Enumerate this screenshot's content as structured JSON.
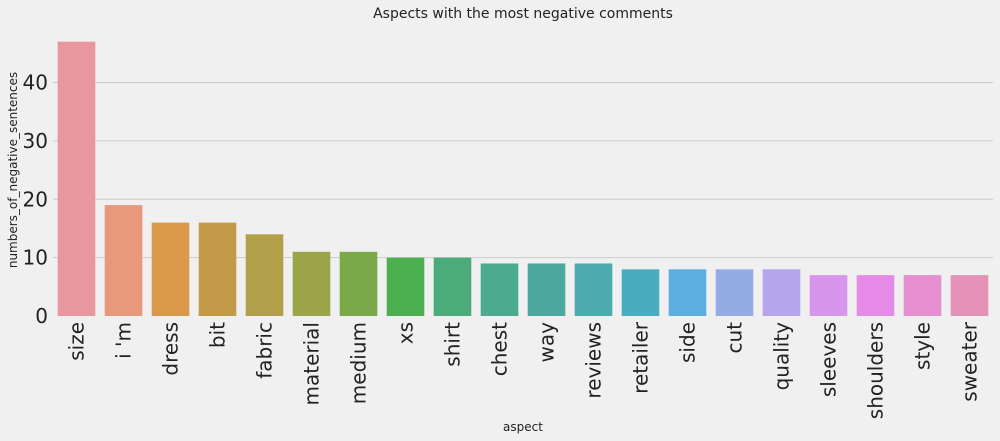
{
  "chart_data": {
    "type": "bar",
    "title": "Aspects with the most negative comments",
    "xlabel": "aspect",
    "ylabel": "numbers_of_negative_sentences",
    "categories": [
      "size",
      "i 'm",
      "dress",
      "bit",
      "fabric",
      "material",
      "medium",
      "xs",
      "shirt",
      "chest",
      "way",
      "reviews",
      "retailer",
      "side",
      "cut",
      "quality",
      "sleeves",
      "shoulders",
      "style",
      "sweater"
    ],
    "values": [
      47,
      19,
      16,
      16,
      14,
      11,
      11,
      10,
      10,
      9,
      9,
      9,
      8,
      8,
      8,
      8,
      7,
      7,
      7,
      7
    ],
    "colors": [
      "#e9969e",
      "#e8997c",
      "#d9984a",
      "#c49a49",
      "#b19f49",
      "#9ba448",
      "#7ba849",
      "#4baf50",
      "#4bab7a",
      "#4cab8f",
      "#4ca99f",
      "#4cabad",
      "#4bacc1",
      "#5cade0",
      "#93ace4",
      "#b5a5ed",
      "#d795ec",
      "#e68ae8",
      "#e68fd0",
      "#e492b8"
    ],
    "yticks": [
      0,
      10,
      20,
      30,
      40
    ],
    "ylim": [
      0,
      49
    ],
    "grid": true
  }
}
